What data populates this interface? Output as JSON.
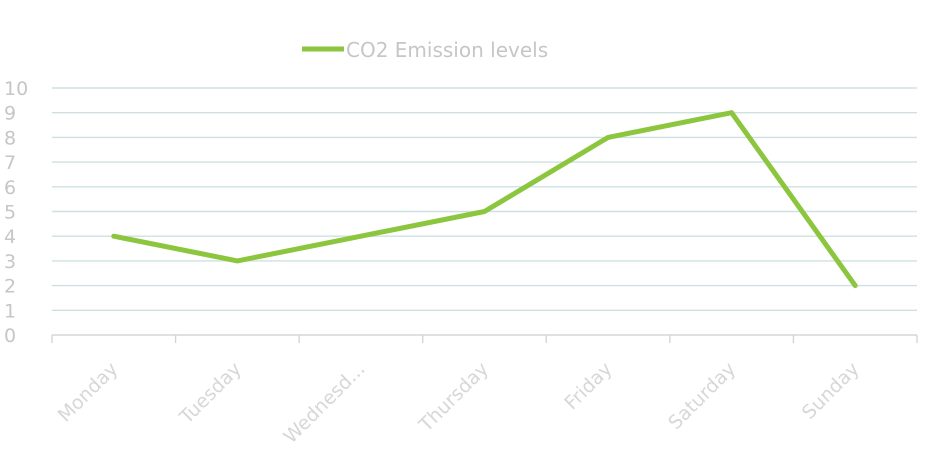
{
  "chart_data": {
    "type": "line",
    "title": "",
    "xlabel": "",
    "ylabel": "",
    "categories": [
      "Monday",
      "Tuesday",
      "Wednesd...",
      "Thursday",
      "Friday",
      "Saturday",
      "Sunday"
    ],
    "series": [
      {
        "name": "CO2 Emission levels",
        "values": [
          4,
          3,
          4,
          5,
          8,
          9,
          2
        ],
        "color": "#8cc63f"
      }
    ],
    "ylim": [
      0,
      10
    ],
    "yticks": [
      0,
      1,
      2,
      3,
      4,
      5,
      6,
      7,
      8,
      9,
      10
    ],
    "grid": true,
    "legend": "top-left"
  }
}
